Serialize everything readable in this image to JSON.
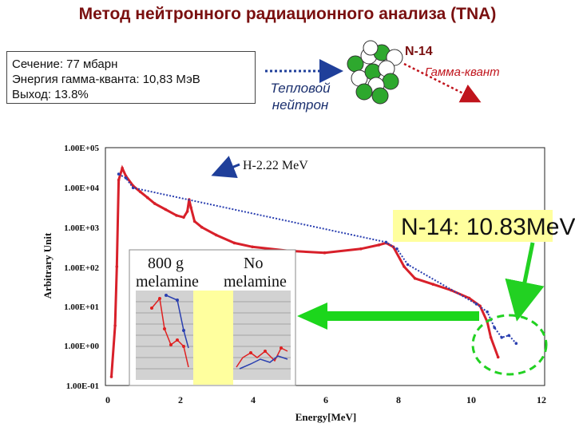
{
  "title": "Метод нейтронного радиационного анализа (TNA)",
  "info_box": {
    "lines": [
      "Сечение: 77 мбарн",
      "Энергия гамма-кванта: 10,83 МэВ",
      "Выход: 13.8%"
    ]
  },
  "reaction": {
    "neutron_label_1": "Тепловой",
    "neutron_label_2": "нейтрон",
    "nucleus_label": "N-14",
    "gamma_label": "Гамма-квант",
    "colors": {
      "neutron_arrow": "#1f3f9a",
      "gamma_arrow": "#c0141c",
      "proton": "#2ea82e",
      "neutron": "#ffffff"
    }
  },
  "chart_data": {
    "type": "line",
    "xlabel": "Energy[MeV]",
    "ylabel": "Arbitrary Unit",
    "x_ticks": [
      "0",
      "2",
      "4",
      "6",
      "8",
      "10",
      "12"
    ],
    "y_ticks": [
      "1.00E+05",
      "1.00E+04",
      "1.00E+03",
      "1.00E+02",
      "1.00E+01",
      "1.00E+00",
      "1.00E-01"
    ],
    "xlim": [
      0,
      12
    ],
    "ylim_log10": [
      -1,
      5
    ],
    "scale_y": "log",
    "series": [
      {
        "color": "#d8202a",
        "points": [
          [
            0.1,
            -0.8
          ],
          [
            0.2,
            0.5
          ],
          [
            0.25,
            2.0
          ],
          [
            0.3,
            4.2
          ],
          [
            0.4,
            4.5
          ],
          [
            0.5,
            4.3
          ],
          [
            0.7,
            4.05
          ],
          [
            0.9,
            3.9
          ],
          [
            1.1,
            3.75
          ],
          [
            1.3,
            3.6
          ],
          [
            1.6,
            3.45
          ],
          [
            1.9,
            3.3
          ],
          [
            2.1,
            3.25
          ],
          [
            2.2,
            3.4
          ],
          [
            2.25,
            3.7
          ],
          [
            2.3,
            3.5
          ],
          [
            2.4,
            3.15
          ],
          [
            2.6,
            3.0
          ],
          [
            3.0,
            2.8
          ],
          [
            3.5,
            2.6
          ],
          [
            4.0,
            2.5
          ],
          [
            5.0,
            2.4
          ],
          [
            6.0,
            2.35
          ],
          [
            7.0,
            2.45
          ],
          [
            7.5,
            2.55
          ],
          [
            7.7,
            2.6
          ],
          [
            7.9,
            2.5
          ],
          [
            8.2,
            2.0
          ],
          [
            8.5,
            1.7
          ],
          [
            9.0,
            1.55
          ],
          [
            9.5,
            1.4
          ],
          [
            10.0,
            1.2
          ],
          [
            10.3,
            1.0
          ],
          [
            10.5,
            0.6
          ],
          [
            10.6,
            0.2
          ],
          [
            10.8,
            -0.3
          ]
        ]
      },
      {
        "color": "#2a3fb0",
        "points": [
          [
            0.3,
            4.35
          ],
          [
            0.5,
            4.25
          ],
          [
            0.7,
            4.0
          ],
          [
            7.7,
            2.62
          ],
          [
            8.0,
            2.45
          ],
          [
            8.3,
            2.05
          ],
          [
            10.2,
            1.05
          ],
          [
            10.5,
            0.85
          ],
          [
            10.7,
            0.45
          ],
          [
            10.9,
            0.2
          ],
          [
            11.1,
            0.25
          ],
          [
            11.3,
            0.05
          ]
        ]
      }
    ],
    "annotations": [
      {
        "text": "H-2.22 MeV",
        "x": 2.22
      },
      {
        "text": "N-14: 10.83MeV",
        "x": 10.83
      }
    ]
  },
  "inset": {
    "label_left_1": "800 g",
    "label_left_2": "melamine",
    "label_right_1": "No",
    "label_right_2": "melamine"
  }
}
